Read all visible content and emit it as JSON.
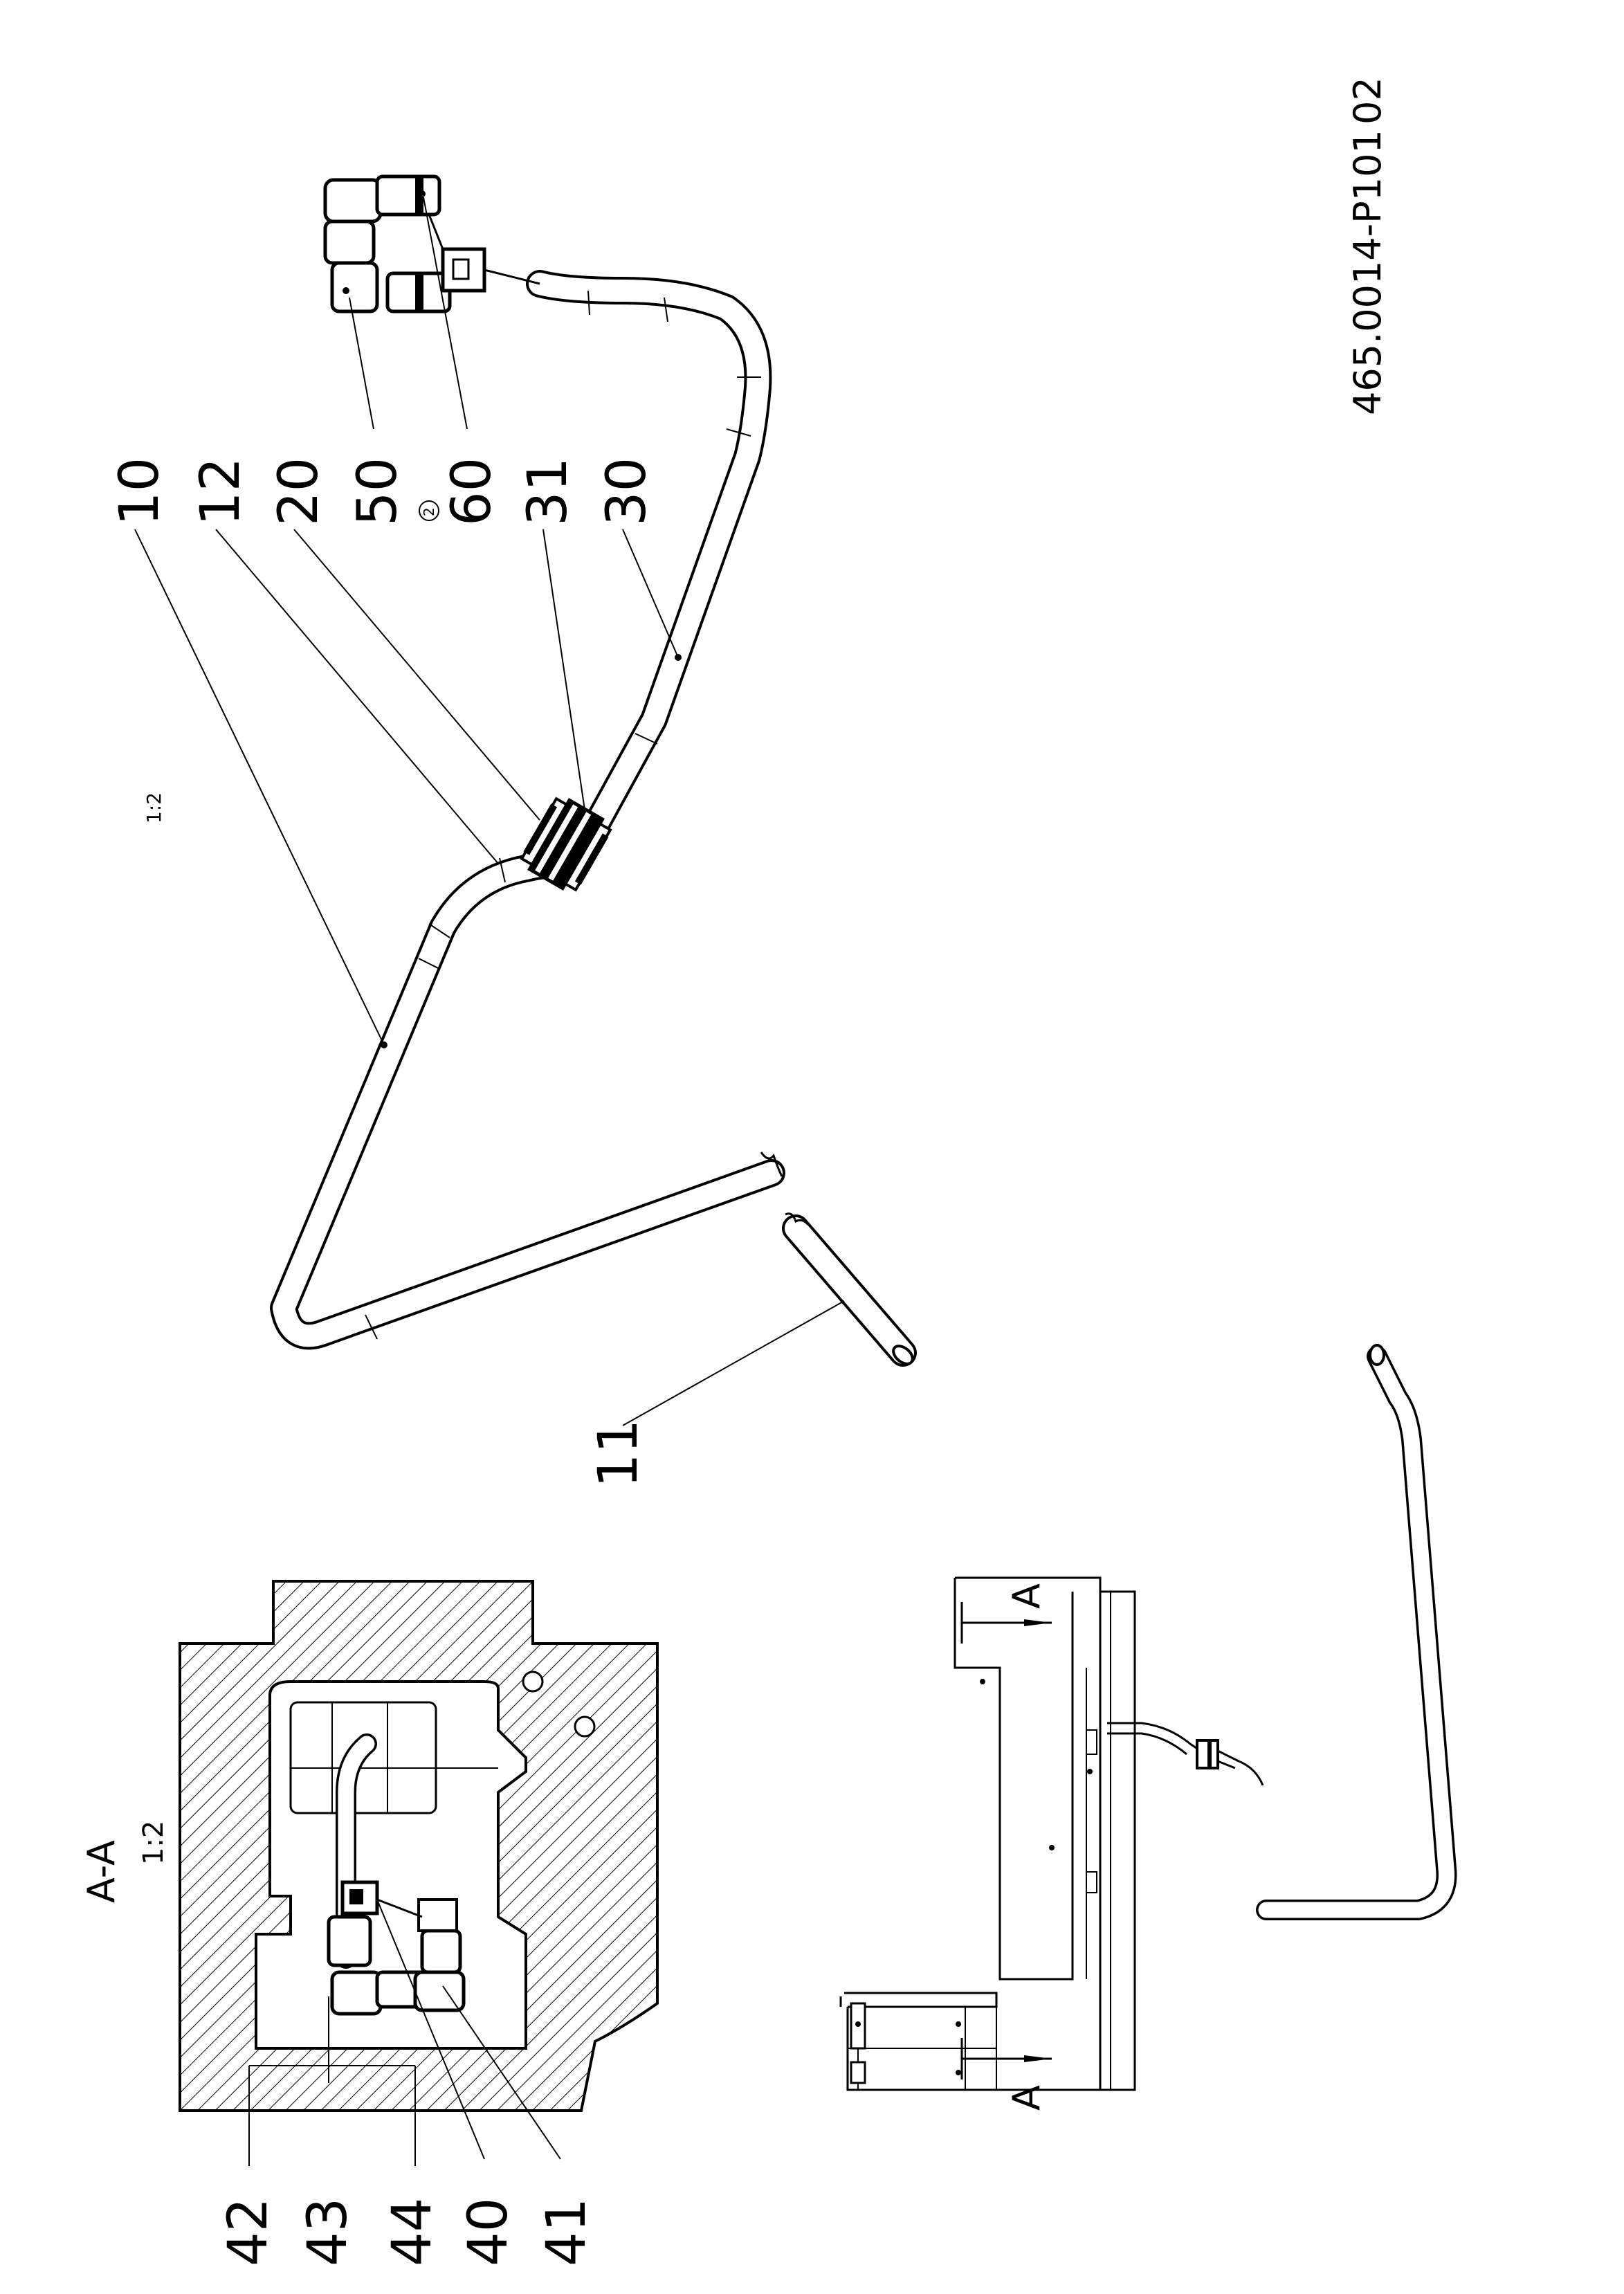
{
  "drawing_number": "465.0014-P101",
  "revision": "02",
  "main_view": {
    "scale": "1:2",
    "labels": [
      "10",
      "12",
      "20",
      "50",
      "60",
      "31",
      "30",
      "11"
    ],
    "note_marker": "2"
  },
  "section_view": {
    "title": "A-A",
    "scale": "1:2",
    "labels": [
      "42",
      "43",
      "44",
      "40",
      "41"
    ]
  },
  "overview": {
    "cut_marker_top": "A",
    "cut_marker_bottom": "A"
  }
}
